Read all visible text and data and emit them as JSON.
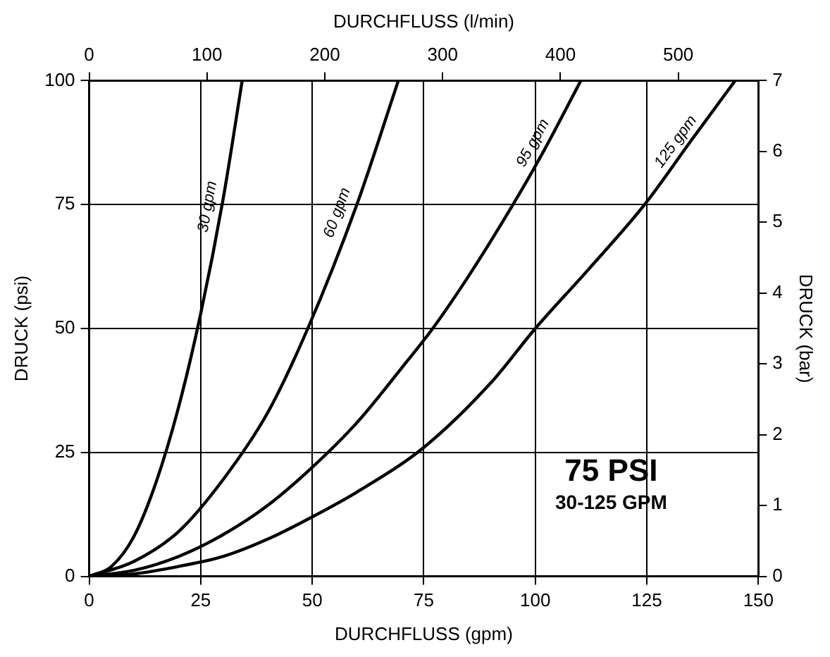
{
  "chart_data": {
    "type": "line",
    "xlabel": "DURCHFLUSS (gpm)",
    "ylabel": "DRUCK (psi)",
    "x2label": "DURCHFLUSS (l/min)",
    "y2label": "DRUCK (bar)",
    "xlim": [
      0,
      150
    ],
    "xticks": [
      0,
      25,
      50,
      75,
      100,
      125,
      150
    ],
    "ylim": [
      0,
      100
    ],
    "yticks": [
      0,
      25,
      50,
      75,
      100
    ],
    "x2lim": [
      0,
      568
    ],
    "x2ticks": [
      0,
      100,
      200,
      300,
      400,
      500
    ],
    "y2lim": [
      0,
      7
    ],
    "y2ticks": [
      0,
      1,
      2,
      3,
      4,
      5,
      6,
      7
    ],
    "grid": true,
    "legend": false,
    "marker": "none",
    "line_style": "solid",
    "annotations": [
      "75 PSI",
      "30-125 GPM"
    ],
    "series": [
      {
        "name": "30 gpm",
        "color": "#000000",
        "x": [
          0,
          5,
          10,
          15,
          20,
          25,
          30,
          34.3
        ],
        "values": [
          0,
          2,
          8,
          19,
          34,
          53,
          76,
          100
        ]
      },
      {
        "name": "60 gpm",
        "color": "#000000",
        "x": [
          0,
          10,
          20,
          30,
          40,
          49,
          60,
          69.3
        ],
        "values": [
          0,
          3,
          9,
          19.5,
          33,
          50,
          75,
          100
        ]
      },
      {
        "name": "95 gpm",
        "color": "#000000",
        "x": [
          0,
          10,
          20,
          30,
          40,
          50,
          60,
          70,
          77,
          85,
          95,
          102,
          110.2
        ],
        "values": [
          0,
          1.2,
          4,
          8.4,
          14.3,
          22,
          31,
          42,
          50,
          60.5,
          75,
          86,
          100
        ]
      },
      {
        "name": "125 gpm",
        "color": "#000000",
        "x": [
          0,
          10,
          20,
          30,
          40,
          50,
          60,
          75,
          90,
          100,
          112,
          124.5,
          135,
          144.8
        ],
        "values": [
          0,
          0.5,
          2,
          4,
          7.5,
          12,
          17,
          26,
          39,
          50,
          62,
          75,
          88,
          100
        ]
      }
    ]
  }
}
